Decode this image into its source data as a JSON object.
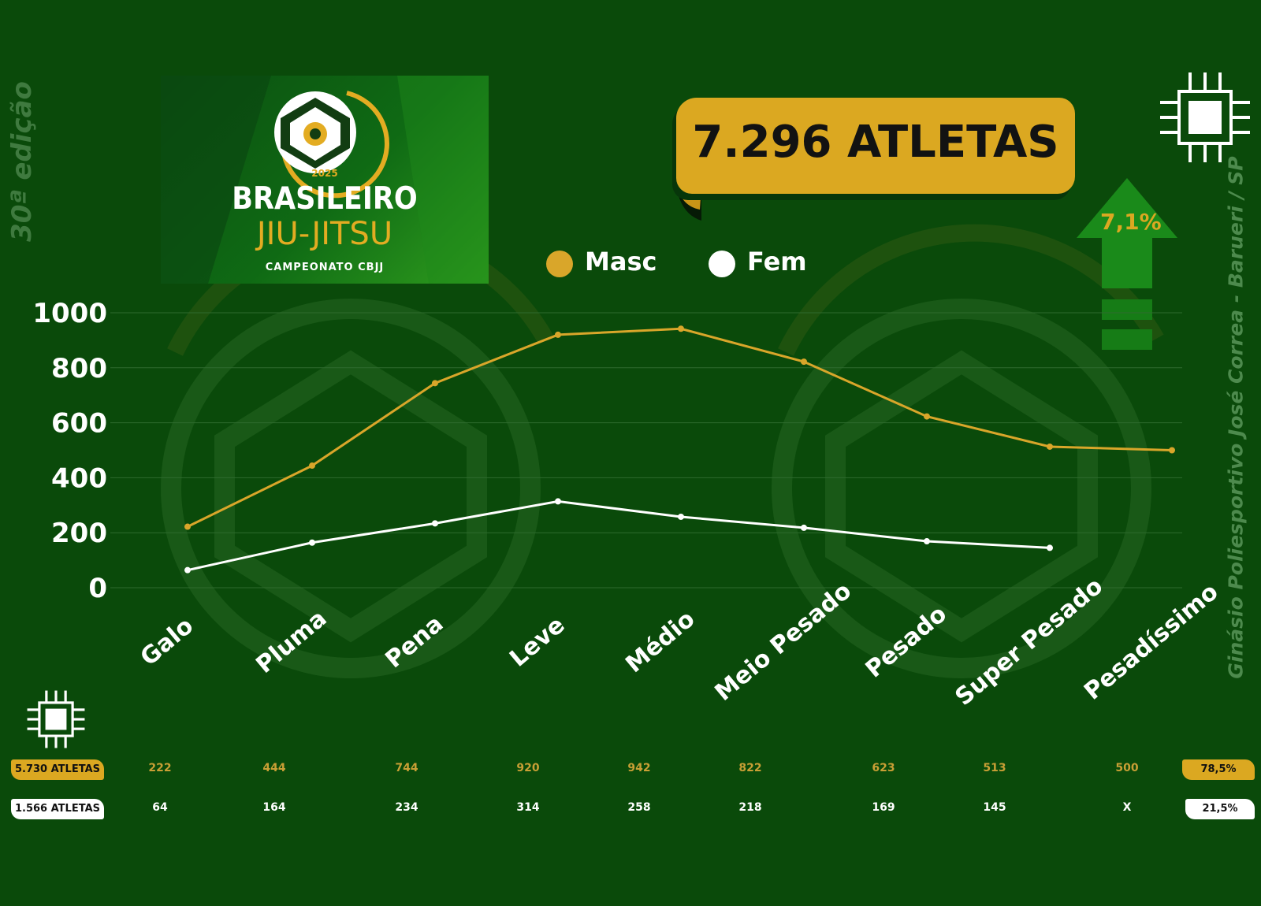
{
  "edition_label": "30ª edição",
  "venue_label": "Ginásio Poliesportivo José Correa - Barueri / SP",
  "logo": {
    "year": "2025",
    "name": "BRASILEIRO",
    "sport": "JIU-JITSU",
    "subtitle": "CAMPEONATO CBJJ"
  },
  "total_label": "7.296  ATLETAS",
  "growth": {
    "label": "7,1%",
    "icon": "up-arrow-icon"
  },
  "colors": {
    "background": "#0a4a0a",
    "masc": "#d9a62a",
    "fem": "#ffffff"
  },
  "chart_data": {
    "type": "line",
    "categories": [
      "Galo",
      "Pluma",
      "Pena",
      "Leve",
      "Médio",
      "Meio Pesado",
      "Pesado",
      "Super Pesado",
      "Pesadíssimo"
    ],
    "series": [
      {
        "name": "Masc",
        "values": [
          222,
          444,
          744,
          920,
          942,
          822,
          623,
          513,
          500
        ]
      },
      {
        "name": "Fem",
        "values": [
          64,
          164,
          234,
          314,
          258,
          218,
          169,
          145,
          null
        ]
      }
    ],
    "y_ticks": [
      "0",
      "200",
      "400",
      "600",
      "800",
      "1000"
    ],
    "ylim": [
      0,
      1000
    ],
    "grid": true,
    "legend": "top-center"
  },
  "table": {
    "masc_total": "5.730 ATLETAS",
    "fem_total": "1.566 ATLETAS",
    "masc_values": [
      "222",
      "444",
      "744",
      "920",
      "942",
      "822",
      "623",
      "513",
      "500"
    ],
    "fem_values": [
      "64",
      "164",
      "234",
      "314",
      "258",
      "218",
      "169",
      "145",
      "X"
    ],
    "masc_pct": "78,5%",
    "fem_pct": "21,5%"
  }
}
